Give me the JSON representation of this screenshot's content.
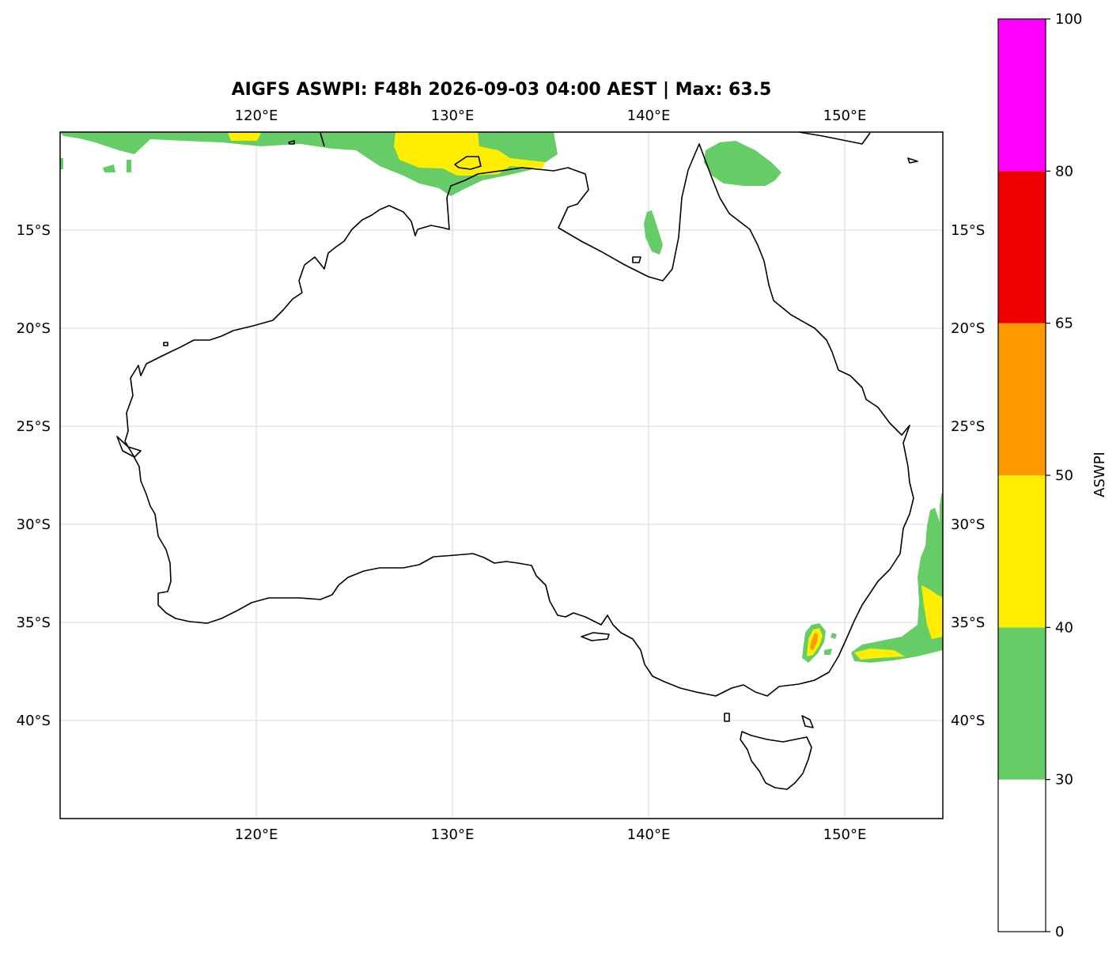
{
  "title": "AIGFS ASWPI: F48h 2026-09-03 04:00 AEST | Max: 63.5",
  "map": {
    "lon_range": [
      110,
      155
    ],
    "lat_range": [
      -45,
      -10
    ],
    "lon_ticks": [
      {
        "value": 120,
        "label": "120°E"
      },
      {
        "value": 130,
        "label": "130°E"
      },
      {
        "value": 140,
        "label": "140°E"
      },
      {
        "value": 150,
        "label": "150°E"
      }
    ],
    "lat_ticks": [
      {
        "value": -15,
        "label": "15°S"
      },
      {
        "value": -20,
        "label": "20°S"
      },
      {
        "value": -25,
        "label": "25°S"
      },
      {
        "value": -30,
        "label": "30°S"
      },
      {
        "value": -35,
        "label": "35°S"
      },
      {
        "value": -40,
        "label": "40°S"
      }
    ],
    "gridlines": true,
    "projection": "PlateCarree"
  },
  "colorbar": {
    "label": "ASWPI",
    "levels": [
      0,
      30,
      40,
      50,
      65,
      80,
      100
    ],
    "level_labels": [
      "0",
      "30",
      "40",
      "50",
      "65",
      "80",
      "100"
    ],
    "colors": [
      "#ffffff",
      "#66cc66",
      "#ffee00",
      "#ff9900",
      "#ee0000",
      "#ff00ff"
    ]
  }
}
